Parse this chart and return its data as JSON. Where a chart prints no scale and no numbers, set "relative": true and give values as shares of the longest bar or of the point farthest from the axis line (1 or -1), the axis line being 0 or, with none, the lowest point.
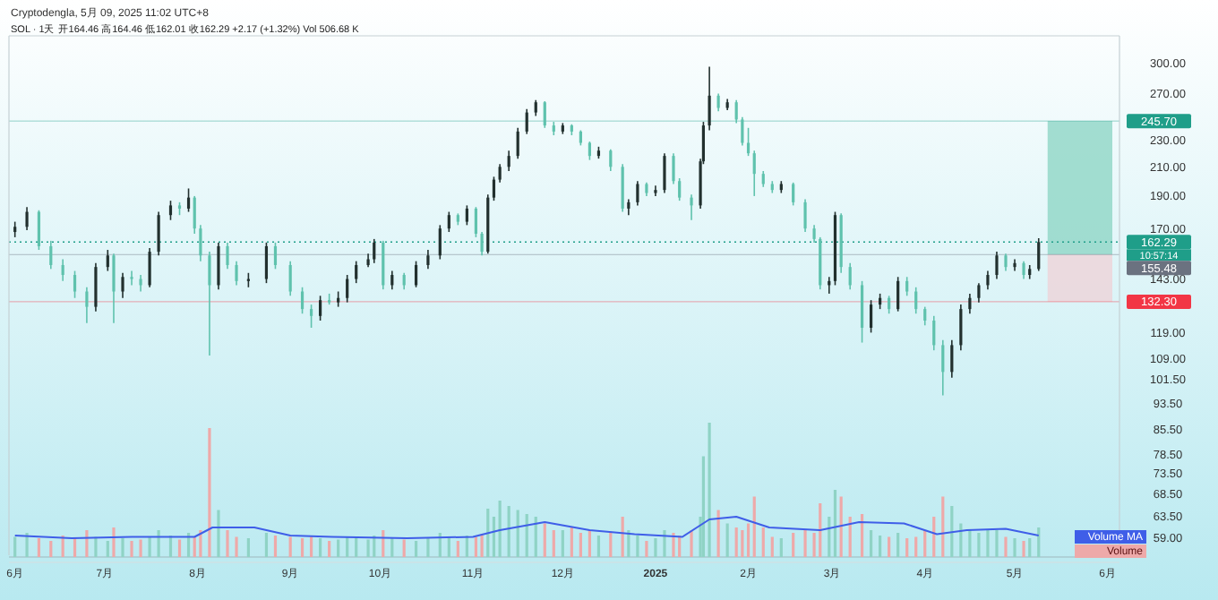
{
  "chart_data": [
    {
      "type": "candlestick",
      "title": "Cryptodengla, 5月 09, 2025 11:02 UTC+8",
      "subtitle": "SOL · 1天  开164.46 高164.46 低162.01 收162.29 +2.17 (+1.32%) Vol 506.68 K",
      "log": true,
      "xlim": [
        "2024-05-30",
        "2025-06-05"
      ],
      "ylim": [
        55.5,
        329
      ],
      "xticks": [
        {
          "value": "2024-06-01",
          "label": "6月"
        },
        {
          "value": "2024-07-01",
          "label": "7月"
        },
        {
          "value": "2024-08-01",
          "label": "8月"
        },
        {
          "value": "2024-09-01",
          "label": "9月"
        },
        {
          "value": "2024-10-01",
          "label": "10月"
        },
        {
          "value": "2024-11-01",
          "label": "11月"
        },
        {
          "value": "2024-12-01",
          "label": "12月"
        },
        {
          "value": "2025-01-01",
          "label": "2025"
        },
        {
          "value": "2025-02-01",
          "label": "2月"
        },
        {
          "value": "2025-03-01",
          "label": "3月"
        },
        {
          "value": "2025-04-01",
          "label": "4月"
        },
        {
          "value": "2025-05-01",
          "label": "5月"
        },
        {
          "value": "2025-06-01",
          "label": "6月"
        }
      ],
      "yticks": [
        {
          "value": 300,
          "label": "300.00"
        },
        {
          "value": 270,
          "label": "270.00"
        },
        {
          "value": 230,
          "label": "230.00"
        },
        {
          "value": 210,
          "label": "210.00"
        },
        {
          "value": 190,
          "label": "190.00"
        },
        {
          "value": 170,
          "label": "170.00"
        },
        {
          "value": 143,
          "label": "143.00"
        },
        {
          "value": 119,
          "label": "119.00"
        },
        {
          "value": 109,
          "label": "109.00"
        },
        {
          "value": 101.5,
          "label": "101.50"
        },
        {
          "value": 93.5,
          "label": "93.50"
        },
        {
          "value": 85.5,
          "label": "85.50"
        },
        {
          "value": 78.5,
          "label": "78.50"
        },
        {
          "value": 73.5,
          "label": "73.50"
        },
        {
          "value": 68.5,
          "label": "68.50"
        },
        {
          "value": 63.5,
          "label": "63.50"
        },
        {
          "value": 59,
          "label": "59.00"
        }
      ],
      "series": [
        {
          "type": "candlestick",
          "colors": [
            "#22302e",
            "#22302e",
            "#5fc2ad",
            "#5fc2ad",
            "#5fc2ad",
            "#5fc2ad",
            "#5fc2ad",
            "#22302e",
            "#22302e",
            "#5fc2ad",
            "#22302e",
            "#5fc2ad",
            "#5fc2ad",
            "#22302e",
            "#22302e",
            "#22302e",
            "#5fc2ad",
            "#22302e",
            "#5fc2ad",
            "#5fc2ad",
            "#5fc2ad",
            "#22302e",
            "#5fc2ad",
            "#5fc2ad",
            "#22302e",
            "#22302e",
            "#5fc2ad",
            "#5fc2ad",
            "#5fc2ad",
            "#5fc2ad",
            "#22302e",
            "#5fc2ad",
            "#22302e",
            "#22302e",
            "#22302e",
            "#22302e",
            "#22302e",
            "#5fc2ad",
            "#22302e",
            "#5fc2ad",
            "#22302e",
            "#22302e",
            "#22302e",
            "#22302e",
            "#5fc2ad",
            "#22302e",
            "#5fc2ad",
            "#5fc2ad",
            "#22302e",
            "#22302e",
            "#22302e",
            "#22302e",
            "#22302e",
            "#22302e",
            "#22302e",
            "#5fc2ad",
            "#5fc2ad",
            "#22302e",
            "#5fc2ad",
            "#5fc2ad",
            "#5fc2ad",
            "#22302e",
            "#5fc2ad",
            "#5fc2ad",
            "#22302e",
            "#22302e",
            "#5fc2ad",
            "#22302e",
            "#22302e",
            "#5fc2ad",
            "#5fc2ad",
            "#5fc2ad",
            "#22302e",
            "#22302e",
            "#22302e",
            "#5fc2ad",
            "#22302e",
            "#5fc2ad",
            "#5fc2ad",
            "#5fc2ad",
            "#5fc2ad",
            "#5fc2ad",
            "#5fc2ad",
            "#22302e",
            "#5fc2ad",
            "#5fc2ad",
            "#5fc2ad",
            "#5fc2ad",
            "#22302e",
            "#22302e",
            "#5fc2ad",
            "#5fc2ad",
            "#5fc2ad",
            "#22302e",
            "#22302e",
            "#5fc2ad",
            "#22302e",
            "#5fc2ad",
            "#5fc2ad",
            "#5fc2ad",
            "#5fc2ad",
            "#5fc2ad",
            "#22302e",
            "#22302e",
            "#22302e",
            "#22302e",
            "#22302e",
            "#22302e",
            "#5fc2ad",
            "#22302e",
            "#5fc2ad",
            "#22302e",
            "#22302e"
          ],
          "x": [
            "2024-06-01",
            "2024-06-05",
            "2024-06-09",
            "2024-06-13",
            "2024-06-17",
            "2024-06-21",
            "2024-06-25",
            "2024-06-28",
            "2024-07-02",
            "2024-07-04",
            "2024-07-07",
            "2024-07-10",
            "2024-07-13",
            "2024-07-16",
            "2024-07-19",
            "2024-07-23",
            "2024-07-26",
            "2024-07-29",
            "2024-07-31",
            "2024-08-02",
            "2024-08-05",
            "2024-08-08",
            "2024-08-11",
            "2024-08-14",
            "2024-08-18",
            "2024-08-24",
            "2024-08-27",
            "2024-09-01",
            "2024-09-05",
            "2024-09-08",
            "2024-09-11",
            "2024-09-14",
            "2024-09-17",
            "2024-09-20",
            "2024-09-23",
            "2024-09-27",
            "2024-09-29",
            "2024-10-02",
            "2024-10-05",
            "2024-10-09",
            "2024-10-13",
            "2024-10-17",
            "2024-10-21",
            "2024-10-24",
            "2024-10-27",
            "2024-10-30",
            "2024-11-02",
            "2024-11-04",
            "2024-11-06",
            "2024-11-08",
            "2024-11-10",
            "2024-11-13",
            "2024-11-16",
            "2024-11-19",
            "2024-11-22",
            "2024-11-25",
            "2024-11-28",
            "2024-12-01",
            "2024-12-04",
            "2024-12-07",
            "2024-12-10",
            "2024-12-13",
            "2024-12-17",
            "2024-12-21",
            "2024-12-23",
            "2024-12-26",
            "2024-12-29",
            "2025-01-01",
            "2025-01-04",
            "2025-01-07",
            "2025-01-09",
            "2025-01-13",
            "2025-01-16",
            "2025-01-17",
            "2025-01-19",
            "2025-01-22",
            "2025-01-25",
            "2025-01-28",
            "2025-01-30",
            "2025-02-01",
            "2025-02-03",
            "2025-02-06",
            "2025-02-09",
            "2025-02-12",
            "2025-02-16",
            "2025-02-20",
            "2025-02-23",
            "2025-02-25",
            "2025-02-28",
            "2025-03-02",
            "2025-03-04",
            "2025-03-07",
            "2025-03-11",
            "2025-03-14",
            "2025-03-17",
            "2025-03-20",
            "2025-03-23",
            "2025-03-26",
            "2025-03-29",
            "2025-04-01",
            "2025-04-04",
            "2025-04-07",
            "2025-04-10",
            "2025-04-13",
            "2025-04-16",
            "2025-04-19",
            "2025-04-22",
            "2025-04-25",
            "2025-04-28",
            "2025-05-01",
            "2025-05-04",
            "2025-05-06",
            "2025-05-09"
          ],
          "ohlc": [
            [
              168,
              174,
              165,
              171
            ],
            [
              171,
              183,
              169,
              180
            ],
            [
              180,
              181,
              158,
              160
            ],
            [
              160,
              163,
              148,
              150
            ],
            [
              150,
              153,
              142,
              145
            ],
            [
              145,
              147,
              134,
              137
            ],
            [
              137,
              139,
              123,
              130
            ],
            [
              130,
              151,
              128,
              149
            ],
            [
              149,
              158,
              147,
              155
            ],
            [
              155,
              156,
              123,
              137
            ],
            [
              137,
              146,
              134,
              144
            ],
            [
              144,
              147,
              140,
              143
            ],
            [
              143,
              145,
              137,
              140
            ],
            [
              140,
              159,
              139,
              157
            ],
            [
              157,
              180,
              155,
              178
            ],
            [
              178,
              187,
              175,
              184
            ],
            [
              184,
              186,
              178,
              182
            ],
            [
              182,
              195,
              180,
              189
            ],
            [
              189,
              190,
              167,
              170
            ],
            [
              170,
              172,
              152,
              155
            ],
            [
              155,
              157,
              110,
              140
            ],
            [
              140,
              162,
              138,
              160
            ],
            [
              160,
              162,
              148,
              150
            ],
            [
              150,
              152,
              140,
              142
            ],
            [
              142,
              146,
              139,
              143
            ],
            [
              143,
              162,
              141,
              160
            ],
            [
              160,
              162,
              148,
              150
            ],
            [
              150,
              152,
              135,
              137
            ],
            [
              137,
              139,
              127,
              129
            ],
            [
              129,
              131,
              121,
              126
            ],
            [
              126,
              135,
              124,
              133
            ],
            [
              133,
              136,
              131,
              132
            ],
            [
              132,
              137,
              130,
              134
            ],
            [
              134,
              145,
              132,
              143
            ],
            [
              143,
              152,
              141,
              150
            ],
            [
              150,
              156,
              149,
              153
            ],
            [
              153,
              164,
              151,
              162
            ],
            [
              162,
              163,
              138,
              140
            ],
            [
              140,
              147,
              138,
              145
            ],
            [
              145,
              146,
              138,
              140
            ],
            [
              140,
              152,
              139,
              150
            ],
            [
              150,
              158,
              148,
              155
            ],
            [
              155,
              172,
              153,
              170
            ],
            [
              170,
              180,
              168,
              178
            ],
            [
              178,
              179,
              172,
              174
            ],
            [
              174,
              184,
              172,
              182
            ],
            [
              182,
              183,
              165,
              167
            ],
            [
              167,
              168,
              155,
              157
            ],
            [
              157,
              191,
              156,
              189
            ],
            [
              189,
              203,
              187,
              201
            ],
            [
              201,
              212,
              199,
              210
            ],
            [
              210,
              222,
              207,
              218
            ],
            [
              218,
              240,
              216,
              237
            ],
            [
              237,
              256,
              235,
              253
            ],
            [
              253,
              264,
              250,
              262
            ],
            [
              262,
              263,
              240,
              242
            ],
            [
              242,
              245,
              234,
              237
            ],
            [
              237,
              244,
              235,
              242
            ],
            [
              242,
              243,
              234,
              237
            ],
            [
              237,
              238,
              226,
              228
            ],
            [
              228,
              229,
              215,
              218
            ],
            [
              218,
              225,
              216,
              222
            ],
            [
              222,
              223,
              207,
              210
            ],
            [
              210,
              212,
              180,
              182
            ],
            [
              182,
              188,
              178,
              186
            ],
            [
              186,
              200,
              184,
              198
            ],
            [
              198,
              199,
              190,
              192
            ],
            [
              192,
              197,
              190,
              194
            ],
            [
              194,
              220,
              192,
              218
            ],
            [
              218,
              220,
              198,
              200
            ],
            [
              200,
              202,
              187,
              189
            ],
            [
              189,
              191,
              175,
              184
            ],
            [
              184,
              216,
              182,
              214
            ],
            [
              214,
              245,
              212,
              242
            ],
            [
              242,
              296,
              238,
              268
            ],
            [
              268,
              270,
              254,
              257
            ],
            [
              257,
              265,
              255,
              262
            ],
            [
              262,
              264,
              244,
              247
            ],
            [
              247,
              249,
              226,
              228
            ],
            [
              228,
              240,
              218,
              220
            ],
            [
              220,
              222,
              190,
              205
            ],
            [
              205,
              207,
              196,
              198
            ],
            [
              198,
              200,
              192,
              194
            ],
            [
              194,
              200,
              192,
              198
            ],
            [
              198,
              199,
              184,
              186
            ],
            [
              186,
              188,
              168,
              170
            ],
            [
              170,
              172,
              162,
              164
            ],
            [
              164,
              165,
              138,
              140
            ],
            [
              140,
              144,
              136,
              142
            ],
            [
              142,
              180,
              140,
              178
            ],
            [
              178,
              179,
              146,
              149
            ],
            [
              149,
              151,
              138,
              140
            ],
            [
              140,
              142,
              115,
              121
            ],
            [
              121,
              133,
              119,
              131
            ],
            [
              131,
              136,
              129,
              134
            ],
            [
              134,
              135,
              127,
              129
            ],
            [
              129,
              144,
              128,
              142
            ],
            [
              142,
              144,
              135,
              137
            ],
            [
              137,
              139,
              127,
              129
            ],
            [
              129,
              130,
              122,
              124
            ],
            [
              124,
              126,
              112,
              114
            ],
            [
              114,
              116,
              96,
              104
            ],
            [
              104,
              116,
              102,
              114
            ],
            [
              114,
              131,
              112,
              129
            ],
            [
              129,
              136,
              127,
              134
            ],
            [
              134,
              141,
              132,
              140
            ],
            [
              140,
              147,
              138,
              145
            ],
            [
              145,
              157,
              143,
              155
            ],
            [
              155,
              156,
              147,
              149
            ],
            [
              149,
              153,
              147,
              151
            ],
            [
              151,
              152,
              143,
              145
            ],
            [
              145,
              150,
              143,
              148
            ],
            [
              148,
              164.46,
              147,
              162.29
            ]
          ]
        }
      ],
      "ref_lines": [
        {
          "axis": "y",
          "value": 245.7,
          "label": "245.70",
          "color": "#1f9e89"
        },
        {
          "axis": "y",
          "value": 162.29,
          "label": "162.29",
          "color": "#1f9e89",
          "line_style": "dotted"
        },
        {
          "axis": "y",
          "value": 155.48,
          "label": "155.48",
          "color": "#6b7280"
        },
        {
          "axis": "y",
          "value": 132.3,
          "label": "132.30",
          "color": "#f23645"
        }
      ],
      "bands": [
        {
          "axis": "y",
          "from": 155.48,
          "to": 245.7,
          "color": "#8fd6c6"
        },
        {
          "axis": "y",
          "from": 132.3,
          "to": 155.48,
          "color": "#eed3d8"
        }
      ],
      "annotations": [
        "10:57:14"
      ]
    },
    {
      "type": "bar",
      "relative": true,
      "legend": "bottom right",
      "xlim": [
        "2024-05-30",
        "2025-06-05"
      ],
      "x": [
        "2024-06-01",
        "2024-06-05",
        "2024-06-09",
        "2024-06-13",
        "2024-06-17",
        "2024-06-21",
        "2024-06-25",
        "2024-06-28",
        "2024-07-02",
        "2024-07-04",
        "2024-07-07",
        "2024-07-10",
        "2024-07-13",
        "2024-07-16",
        "2024-07-19",
        "2024-07-23",
        "2024-07-26",
        "2024-07-29",
        "2024-07-31",
        "2024-08-02",
        "2024-08-05",
        "2024-08-08",
        "2024-08-11",
        "2024-08-14",
        "2024-08-18",
        "2024-08-24",
        "2024-08-27",
        "2024-09-01",
        "2024-09-05",
        "2024-09-08",
        "2024-09-11",
        "2024-09-14",
        "2024-09-17",
        "2024-09-20",
        "2024-09-23",
        "2024-09-27",
        "2024-09-29",
        "2024-10-02",
        "2024-10-05",
        "2024-10-09",
        "2024-10-13",
        "2024-10-17",
        "2024-10-21",
        "2024-10-24",
        "2024-10-27",
        "2024-10-30",
        "2024-11-02",
        "2024-11-04",
        "2024-11-06",
        "2024-11-08",
        "2024-11-10",
        "2024-11-13",
        "2024-11-16",
        "2024-11-19",
        "2024-11-22",
        "2024-11-25",
        "2024-11-28",
        "2024-12-01",
        "2024-12-04",
        "2024-12-07",
        "2024-12-10",
        "2024-12-13",
        "2024-12-17",
        "2024-12-21",
        "2024-12-23",
        "2024-12-26",
        "2024-12-29",
        "2025-01-01",
        "2025-01-04",
        "2025-01-07",
        "2025-01-09",
        "2025-01-13",
        "2025-01-16",
        "2025-01-17",
        "2025-01-19",
        "2025-01-22",
        "2025-01-25",
        "2025-01-28",
        "2025-01-30",
        "2025-02-01",
        "2025-02-03",
        "2025-02-06",
        "2025-02-09",
        "2025-02-12",
        "2025-02-16",
        "2025-02-20",
        "2025-02-23",
        "2025-02-25",
        "2025-02-28",
        "2025-03-02",
        "2025-03-04",
        "2025-03-07",
        "2025-03-11",
        "2025-03-14",
        "2025-03-17",
        "2025-03-20",
        "2025-03-23",
        "2025-03-26",
        "2025-03-29",
        "2025-04-01",
        "2025-04-04",
        "2025-04-07",
        "2025-04-10",
        "2025-04-13",
        "2025-04-16",
        "2025-04-19",
        "2025-04-22",
        "2025-04-25",
        "2025-04-28",
        "2025-05-01",
        "2025-05-04",
        "2025-05-06",
        "2025-05-09"
      ],
      "series": [
        {
          "name": "Volume",
          "type": "bar",
          "color": "#eea9a9",
          "values": [
            0.15,
            0.18,
            0.14,
            0.12,
            0.16,
            0.14,
            0.2,
            0.15,
            0.12,
            0.22,
            0.14,
            0.12,
            0.13,
            0.15,
            0.2,
            0.16,
            0.13,
            0.18,
            0.15,
            0.2,
            0.96,
            0.35,
            0.2,
            0.15,
            0.14,
            0.18,
            0.16,
            0.15,
            0.14,
            0.16,
            0.14,
            0.12,
            0.13,
            0.15,
            0.14,
            0.13,
            0.16,
            0.2,
            0.14,
            0.13,
            0.12,
            0.14,
            0.18,
            0.15,
            0.12,
            0.16,
            0.15,
            0.17,
            0.36,
            0.3,
            0.42,
            0.38,
            0.35,
            0.32,
            0.3,
            0.25,
            0.2,
            0.2,
            0.22,
            0.18,
            0.2,
            0.16,
            0.18,
            0.3,
            0.2,
            0.16,
            0.12,
            0.14,
            0.2,
            0.18,
            0.16,
            0.2,
            0.3,
            0.75,
            1,
            0.35,
            0.25,
            0.22,
            0.2,
            0.25,
            0.45,
            0.22,
            0.15,
            0.14,
            0.18,
            0.2,
            0.18,
            0.4,
            0.3,
            0.5,
            0.45,
            0.3,
            0.32,
            0.2,
            0.16,
            0.15,
            0.18,
            0.14,
            0.15,
            0.2,
            0.3,
            0.45,
            0.38,
            0.25,
            0.2,
            0.18,
            0.2,
            0.2,
            0.15,
            0.14,
            0.12,
            0.14,
            0.22
          ],
          "colors": [
            "#8fd3c5",
            "#8fd3c5",
            "#eea9a9",
            "#eea9a9",
            "#eea9a9",
            "#eea9a9",
            "#eea9a9",
            "#8fd3c5",
            "#8fd3c5",
            "#eea9a9",
            "#8fd3c5",
            "#eea9a9",
            "#eea9a9",
            "#8fd3c5",
            "#8fd3c5",
            "#8fd3c5",
            "#eea9a9",
            "#8fd3c5",
            "#eea9a9",
            "#eea9a9",
            "#eea9a9",
            "#8fd3c5",
            "#eea9a9",
            "#eea9a9",
            "#8fd3c5",
            "#8fd3c5",
            "#eea9a9",
            "#eea9a9",
            "#eea9a9",
            "#eea9a9",
            "#8fd3c5",
            "#eea9a9",
            "#8fd3c5",
            "#8fd3c5",
            "#8fd3c5",
            "#8fd3c5",
            "#8fd3c5",
            "#eea9a9",
            "#8fd3c5",
            "#eea9a9",
            "#8fd3c5",
            "#8fd3c5",
            "#8fd3c5",
            "#8fd3c5",
            "#eea9a9",
            "#8fd3c5",
            "#eea9a9",
            "#eea9a9",
            "#8fd3c5",
            "#8fd3c5",
            "#8fd3c5",
            "#8fd3c5",
            "#8fd3c5",
            "#8fd3c5",
            "#8fd3c5",
            "#eea9a9",
            "#eea9a9",
            "#8fd3c5",
            "#eea9a9",
            "#eea9a9",
            "#eea9a9",
            "#8fd3c5",
            "#eea9a9",
            "#eea9a9",
            "#8fd3c5",
            "#8fd3c5",
            "#eea9a9",
            "#8fd3c5",
            "#8fd3c5",
            "#eea9a9",
            "#eea9a9",
            "#eea9a9",
            "#8fd3c5",
            "#8fd3c5",
            "#8fd3c5",
            "#eea9a9",
            "#8fd3c5",
            "#eea9a9",
            "#eea9a9",
            "#eea9a9",
            "#eea9a9",
            "#eea9a9",
            "#eea9a9",
            "#8fd3c5",
            "#eea9a9",
            "#eea9a9",
            "#eea9a9",
            "#eea9a9",
            "#8fd3c5",
            "#8fd3c5",
            "#eea9a9",
            "#eea9a9",
            "#eea9a9",
            "#8fd3c5",
            "#8fd3c5",
            "#eea9a9",
            "#8fd3c5",
            "#eea9a9",
            "#eea9a9",
            "#eea9a9",
            "#eea9a9",
            "#eea9a9",
            "#8fd3c5",
            "#8fd3c5",
            "#8fd3c5",
            "#8fd3c5",
            "#8fd3c5",
            "#8fd3c5",
            "#eea9a9",
            "#8fd3c5",
            "#eea9a9",
            "#8fd3c5",
            "#8fd3c5"
          ]
        },
        {
          "name": "Volume MA",
          "type": "line",
          "color": "#3f5ee8",
          "x": [
            "2024-06-01",
            "2024-06-20",
            "2024-07-10",
            "2024-07-31",
            "2024-08-06",
            "2024-08-20",
            "2024-09-01",
            "2024-09-15",
            "2024-10-10",
            "2024-11-01",
            "2024-11-10",
            "2024-11-25",
            "2024-12-10",
            "2024-12-25",
            "2025-01-10",
            "2025-01-19",
            "2025-01-28",
            "2025-02-08",
            "2025-02-25",
            "2025-03-10",
            "2025-03-25",
            "2025-04-05",
            "2025-04-15",
            "2025-04-28",
            "2025-05-09"
          ],
          "values": [
            0.16,
            0.14,
            0.15,
            0.15,
            0.22,
            0.22,
            0.16,
            0.15,
            0.14,
            0.15,
            0.2,
            0.26,
            0.2,
            0.17,
            0.15,
            0.28,
            0.3,
            0.22,
            0.2,
            0.26,
            0.25,
            0.17,
            0.2,
            0.21,
            0.16
          ]
        }
      ]
    }
  ]
}
